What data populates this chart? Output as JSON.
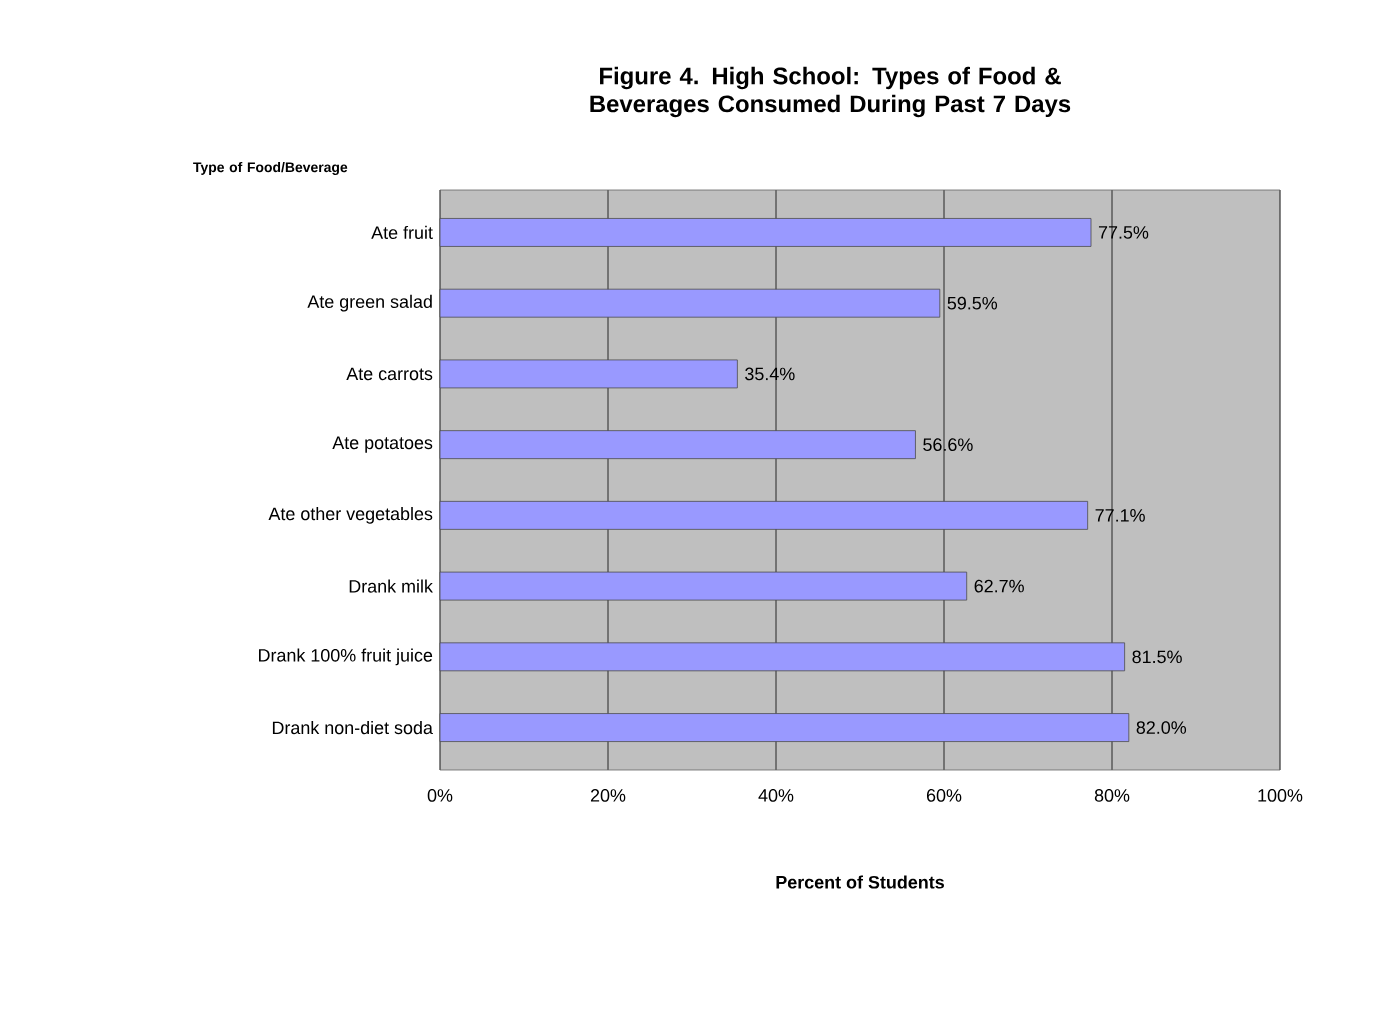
{
  "chart_data": {
    "type": "bar",
    "orientation": "horizontal",
    "title": "Figure 4.  High School: Types of Food & Beverages Consumed During Past 7 Days",
    "ylabel": "Type of Food/Beverage",
    "xlabel": "Percent of Students",
    "categories": [
      "Ate fruit",
      "Ate green salad",
      "Ate carrots",
      "Ate potatoes",
      "Ate other vegetables",
      "Drank milk",
      "Drank 100% fruit juice",
      "Drank non-diet soda"
    ],
    "values": [
      77.5,
      59.5,
      35.4,
      56.6,
      77.1,
      62.7,
      81.5,
      82.0
    ],
    "value_labels": [
      "77.5%",
      "59.5%",
      "35.4%",
      "56.6%",
      "77.1%",
      "62.7%",
      "81.5%",
      "82.0%"
    ],
    "color": "#9999ff",
    "xlim": [
      0,
      100
    ],
    "xticks": [
      {
        "value": 0,
        "label": "0%"
      },
      {
        "value": 20,
        "label": "20%"
      },
      {
        "value": 40,
        "label": "40%"
      },
      {
        "value": 60,
        "label": "60%"
      },
      {
        "value": 80,
        "label": "80%"
      },
      {
        "value": 100,
        "label": "100%"
      }
    ],
    "grid": "x"
  }
}
